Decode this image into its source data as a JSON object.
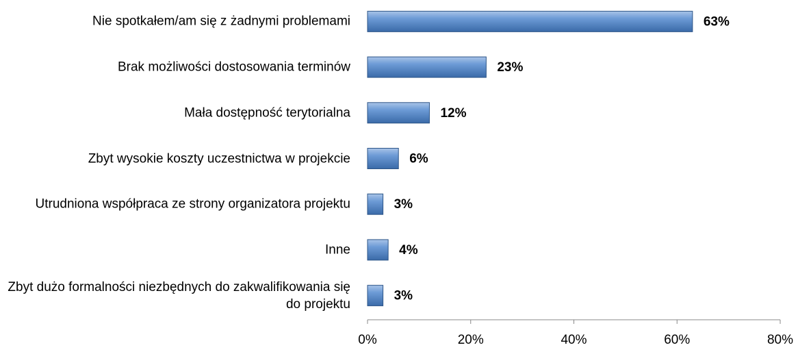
{
  "chart_data": {
    "type": "bar",
    "orientation": "horizontal",
    "categories": [
      "Nie spotkałem/am się z żadnymi problemami",
      "Brak możliwości dostosowania terminów",
      "Mała dostępność terytorialna",
      "Zbyt wysokie koszty uczestnictwa w projekcie",
      "Utrudniona współpraca ze strony organizatora projektu",
      "Inne",
      "Zbyt dużo formalności niezbędnych do zakwalifikowania się do projektu"
    ],
    "values": [
      63,
      23,
      12,
      6,
      3,
      4,
      3
    ],
    "value_labels": [
      "63%",
      "23%",
      "12%",
      "6%",
      "3%",
      "4%",
      "3%"
    ],
    "color": "#4f81bd",
    "xlim": [
      0,
      80
    ],
    "xticks": [
      {
        "value": 0,
        "label": "0%"
      },
      {
        "value": 20,
        "label": "20%"
      },
      {
        "value": 40,
        "label": "40%"
      },
      {
        "value": 60,
        "label": "60%"
      },
      {
        "value": 80,
        "label": "80%"
      }
    ],
    "grid": false
  }
}
